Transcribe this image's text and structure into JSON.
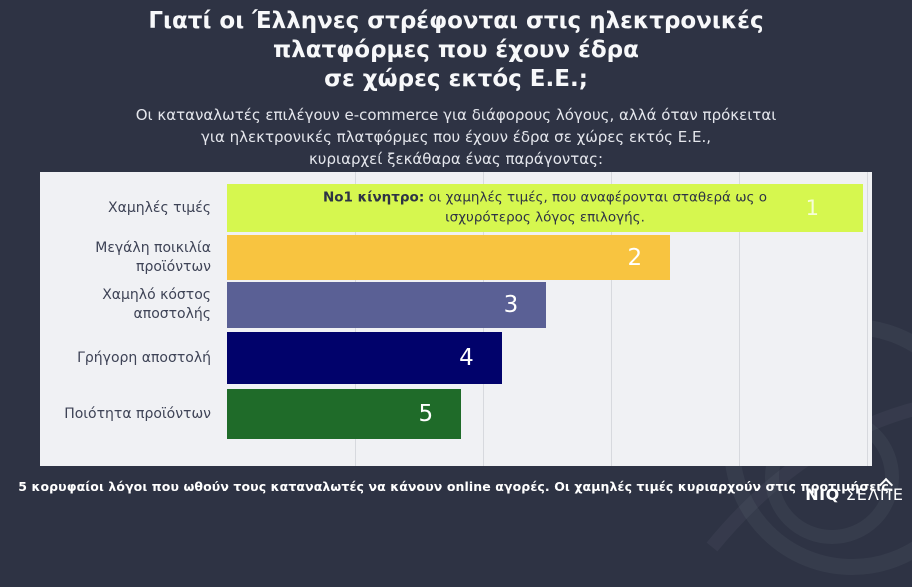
{
  "page": {
    "background": "#2e3344",
    "title_lines": [
      "Γιατί οι Έλληνες στρέφονται στις ηλεκτρονικές",
      "πλατφόρμες που έχουν έδρα",
      "σε χώρες εκτός Ε.Ε.;"
    ],
    "subtitle_lines": [
      "Οι καταναλωτές επιλέγουν e-commerce για διάφορους λόγους, αλλά όταν πρόκειται",
      "για ηλεκτρονικές πλατφόρμες που έχουν έδρα σε χώρες εκτός Ε.Ε.,",
      "κυριαρχεί ξεκάθαρα ένας παράγοντας:"
    ],
    "footer": "5 κορυφαίοι λόγοι που ωθούν τους καταναλωτές να κάνουν online αγορές. Οι χαμηλές τιμές κυριαρχούν στις προτιμήσεις.",
    "logo": {
      "niq": "NIQ",
      "selpe_pre": "ΣΕΛ",
      "selpe_pi": "Π",
      "selpe_post": "Ε"
    }
  },
  "chart_data": {
    "type": "bar",
    "orientation": "horizontal",
    "title": "Γιατί οι Έλληνες στρέφονται στις ηλεκτρονικές πλατφόρμες που έχουν έδρα σε χώρες εκτός Ε.Ε.;",
    "categories": [
      "Χαμηλές τιμές",
      "Μεγάλη ποικιλία προϊόντων",
      "Χαμηλό κόστος αποστολής",
      "Γρήγορη αποστολή",
      "Ποιότητα προϊόντων"
    ],
    "values": [
      1,
      2,
      3,
      4,
      5
    ],
    "value_meaning": "rank shown on each bar (1 = strongest reason)",
    "bar_width_pct": [
      98.6,
      68.7,
      49.5,
      42.6,
      36.3
    ],
    "bar_colors": [
      "#d6f74f",
      "#f8c440",
      "#5a6095",
      "#01026b",
      "#1f6b29"
    ],
    "annotation_bold": "Νο1 κίνητρο:",
    "annotation_text": " οι χαμηλές τιμές, που αναφέρονται σταθερά ως ο ισχυρότερος λόγος επιλογής.",
    "panel_bg": "#f0f1f4",
    "grid": "vertical gridlines, 5 equal intervals",
    "legend": "none"
  }
}
